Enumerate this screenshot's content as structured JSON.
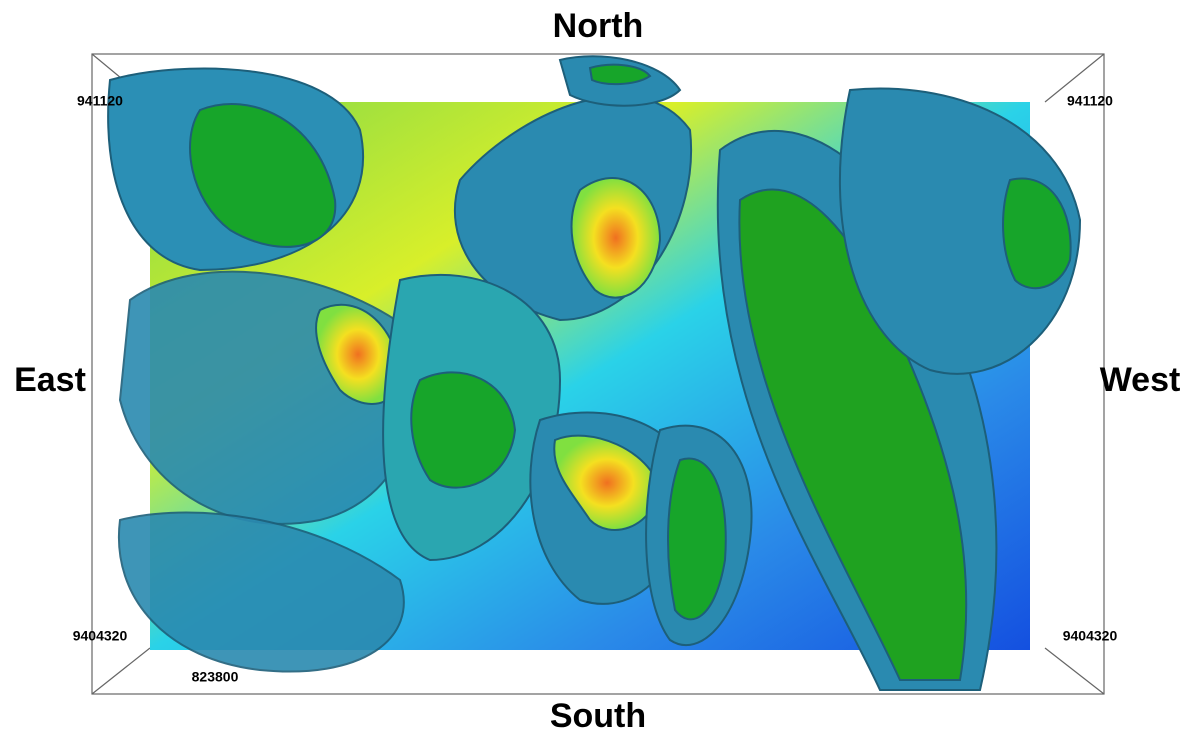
{
  "compass": {
    "north": "North",
    "south": "South",
    "east": "East",
    "west": "West"
  },
  "coordinate_labels": {
    "top_left": "941120",
    "top_right": "941120",
    "bottom_left": "9404320",
    "bottom_right": "9404320",
    "bottom_x": "823800"
  }
}
